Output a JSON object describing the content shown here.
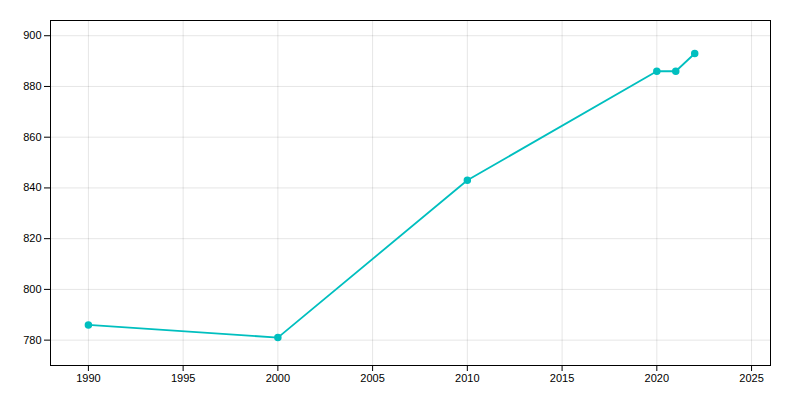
{
  "chart_data": {
    "type": "line",
    "x": [
      1990,
      2000,
      2010,
      2020,
      2021,
      2022
    ],
    "values": [
      786,
      781,
      843,
      886,
      886,
      893
    ],
    "color": "#00BFBF",
    "marker": "circle",
    "xlim": [
      1988,
      2026
    ],
    "ylim": [
      770,
      906
    ],
    "xticks": [
      1990,
      1995,
      2000,
      2005,
      2010,
      2015,
      2020,
      2025
    ],
    "yticks": [
      780,
      800,
      820,
      840,
      860,
      880,
      900
    ],
    "grid": true
  }
}
